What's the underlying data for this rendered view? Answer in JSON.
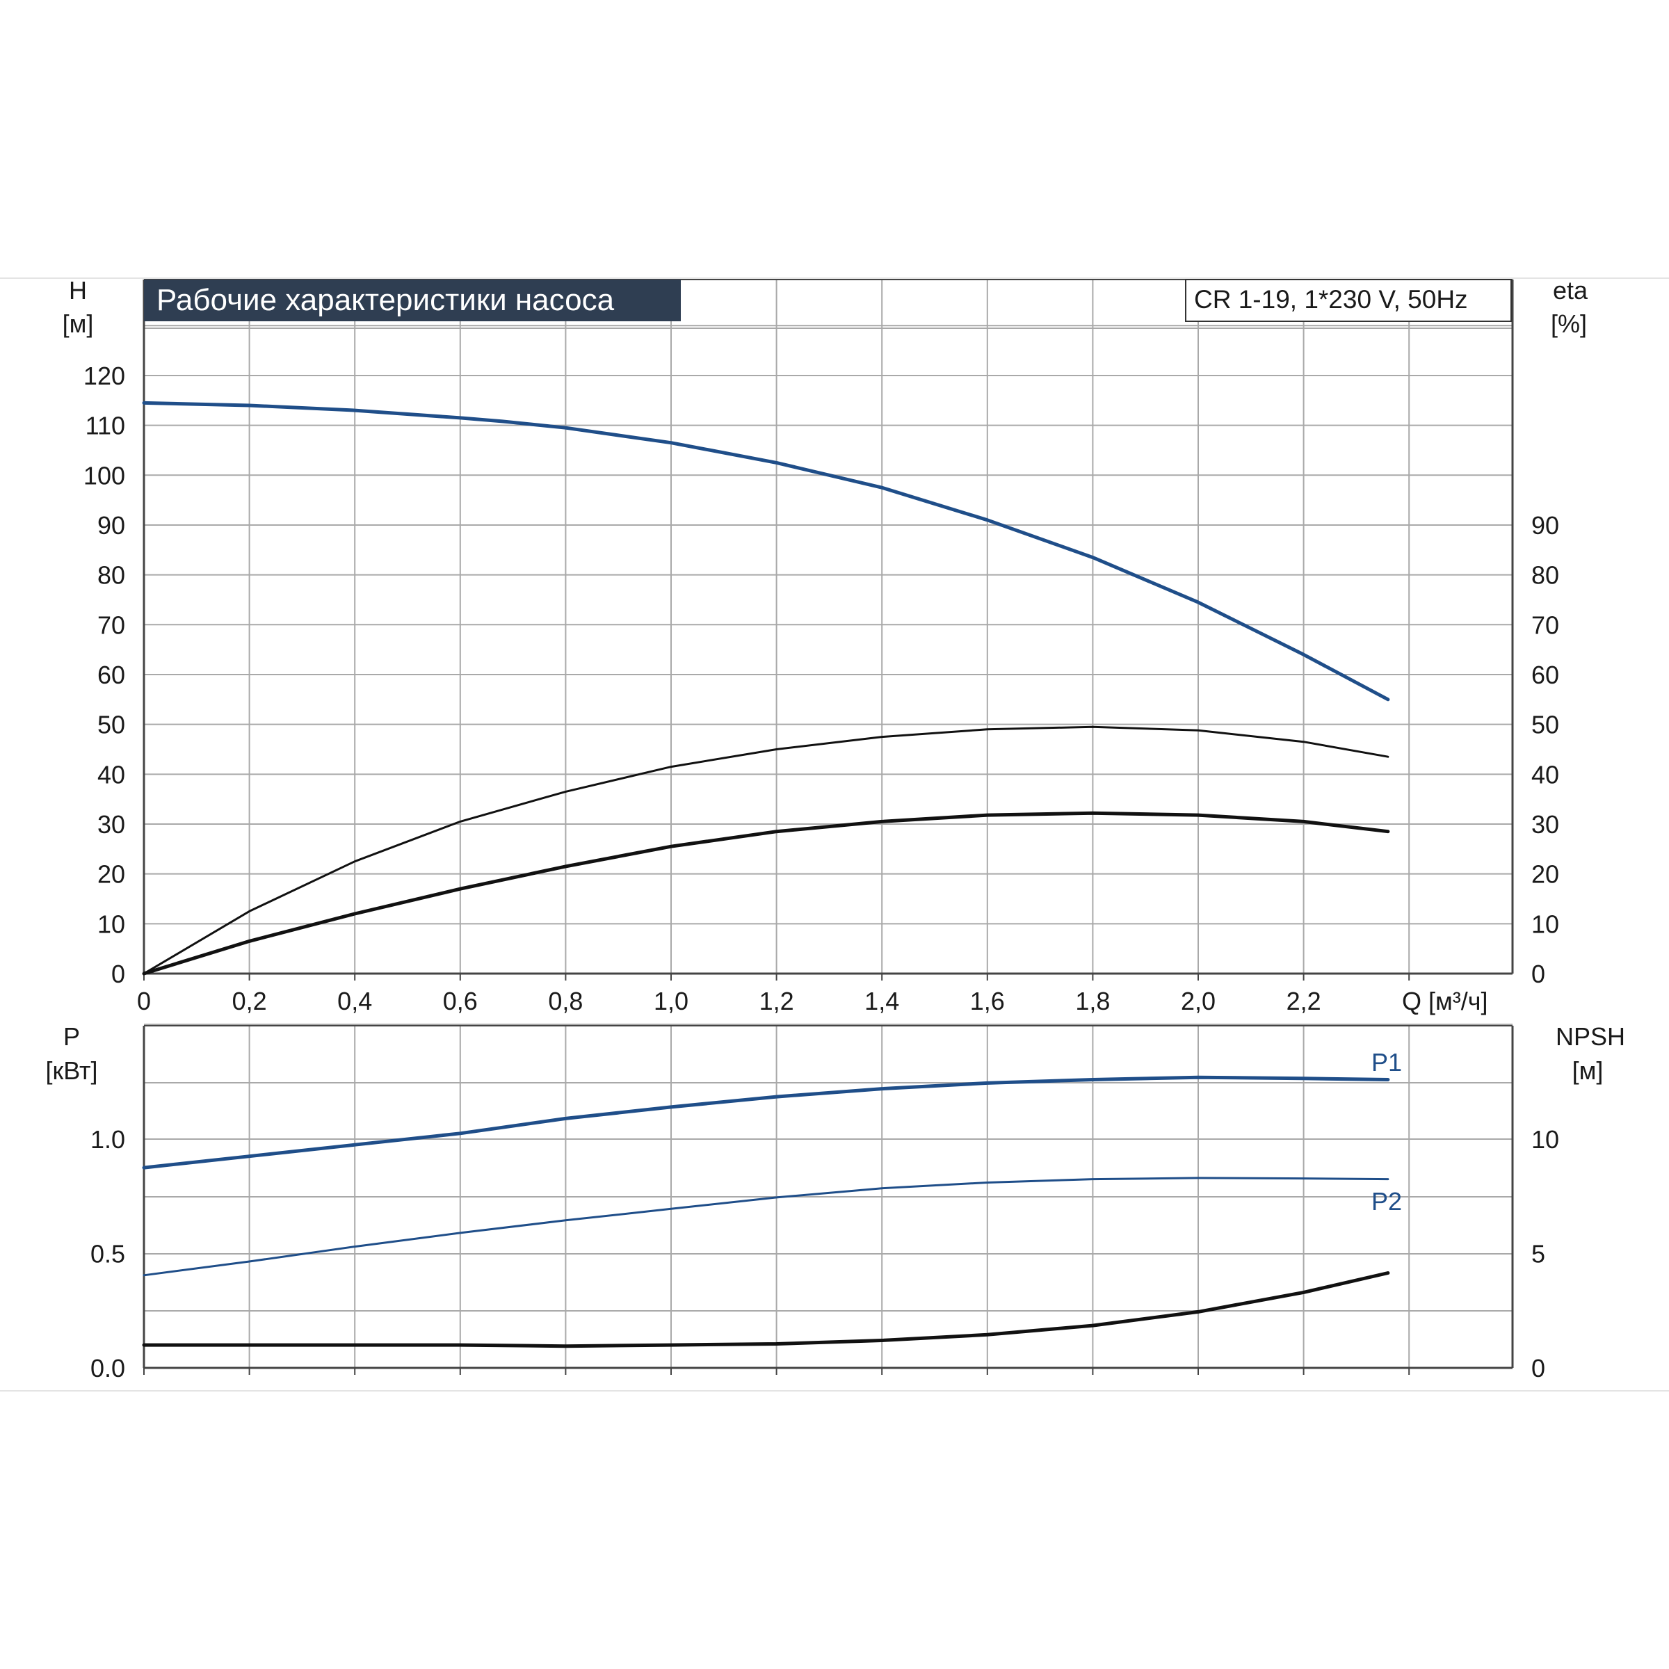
{
  "title": "Рабочие характеристики насоса",
  "model_label": "CR 1-19, 1*230 V, 50Hz",
  "colors": {
    "grid": "#a9a9a9",
    "axis": "#444444",
    "blue": "#1f4e89",
    "black": "#111111",
    "title_bg": "#2f3e52",
    "title_text": "#ffffff"
  },
  "chart_data": [
    {
      "type": "line",
      "title": "Рабочие характеристики насоса",
      "xlabel": "Q [м³/ч]",
      "xlim": [
        0,
        2.6
      ],
      "x_ticks": [
        "0",
        "0,2",
        "0,4",
        "0,6",
        "0,8",
        "1,0",
        "1,2",
        "1,4",
        "1,6",
        "1,8",
        "2,0",
        "2,2"
      ],
      "y_left": {
        "label_top": "H",
        "label_unit": "[м]",
        "lim": [
          0,
          130
        ],
        "ticks": [
          "0",
          "10",
          "20",
          "30",
          "40",
          "50",
          "60",
          "70",
          "80",
          "90",
          "100",
          "110",
          "120"
        ]
      },
      "y_right": {
        "label_top": "eta",
        "label_unit": "[%]",
        "lim": [
          0,
          130
        ],
        "ticks": [
          "0",
          "10",
          "20",
          "30",
          "40",
          "50",
          "60",
          "70",
          "80",
          "90"
        ]
      },
      "grid": true,
      "series": [
        {
          "key": "head",
          "color": "blue",
          "axis": "left",
          "x": [
            0,
            0.2,
            0.4,
            0.6,
            0.68,
            0.8,
            1.0,
            1.2,
            1.4,
            1.6,
            1.8,
            2.0,
            2.2,
            2.36
          ],
          "y": [
            114.5,
            114.0,
            113.0,
            111.5,
            110.8,
            109.5,
            106.5,
            102.5,
            97.5,
            91.0,
            83.5,
            74.5,
            64.0,
            55.0
          ]
        },
        {
          "key": "eta_total",
          "color": "black",
          "axis": "right",
          "x": [
            0,
            0.2,
            0.4,
            0.6,
            0.8,
            1.0,
            1.2,
            1.4,
            1.6,
            1.8,
            2.0,
            2.2,
            2.36
          ],
          "y": [
            0,
            12.5,
            22.5,
            30.5,
            36.5,
            41.5,
            45.0,
            47.5,
            49.0,
            49.5,
            48.8,
            46.5,
            43.5
          ]
        },
        {
          "key": "eta_pump",
          "color": "black",
          "axis": "right",
          "x": [
            0,
            0.2,
            0.4,
            0.6,
            0.8,
            1.0,
            1.2,
            1.4,
            1.6,
            1.8,
            2.0,
            2.2,
            2.36
          ],
          "y": [
            0,
            6.5,
            12.0,
            17.0,
            21.5,
            25.5,
            28.5,
            30.5,
            31.8,
            32.2,
            31.8,
            30.5,
            28.5
          ]
        }
      ]
    },
    {
      "type": "line",
      "xlim": [
        0,
        2.6
      ],
      "y_left": {
        "label_top": "P",
        "label_unit": "[кВт]",
        "lim": [
          0,
          1.5
        ],
        "ticks": [
          {
            "v": 0,
            "t": "0.0"
          },
          {
            "v": 0.5,
            "t": "0.5"
          },
          {
            "v": 1.0,
            "t": "1.0"
          }
        ]
      },
      "y_right": {
        "label_top": "NPSH",
        "label_unit": "[м]",
        "lim": [
          0,
          15
        ],
        "ticks": [
          {
            "v": 0,
            "t": "0"
          },
          {
            "v": 5,
            "t": "5"
          },
          {
            "v": 10,
            "t": "10"
          }
        ]
      },
      "grid": true,
      "series": [
        {
          "name": "P1",
          "key": "p1",
          "color": "blue",
          "axis": "left",
          "x": [
            0,
            0.2,
            0.4,
            0.6,
            0.8,
            1.0,
            1.2,
            1.4,
            1.6,
            1.8,
            2.0,
            2.2,
            2.36
          ],
          "y": [
            0.875,
            0.925,
            0.975,
            1.025,
            1.09,
            1.14,
            1.185,
            1.22,
            1.245,
            1.26,
            1.27,
            1.265,
            1.26
          ]
        },
        {
          "name": "P2",
          "key": "p2",
          "color": "blue",
          "axis": "left",
          "x": [
            0,
            0.2,
            0.4,
            0.6,
            0.8,
            1.0,
            1.2,
            1.4,
            1.6,
            1.8,
            2.0,
            2.2,
            2.36
          ],
          "y": [
            0.405,
            0.465,
            0.53,
            0.59,
            0.645,
            0.695,
            0.745,
            0.785,
            0.81,
            0.825,
            0.83,
            0.828,
            0.825
          ]
        },
        {
          "key": "npsh",
          "color": "black",
          "axis": "right",
          "x": [
            0,
            0.2,
            0.4,
            0.6,
            0.8,
            1.0,
            1.2,
            1.4,
            1.6,
            1.8,
            2.0,
            2.2,
            2.36
          ],
          "y": [
            1.0,
            1.0,
            1.0,
            1.0,
            0.95,
            1.0,
            1.05,
            1.2,
            1.45,
            1.85,
            2.45,
            3.3,
            4.15
          ]
        }
      ]
    }
  ]
}
